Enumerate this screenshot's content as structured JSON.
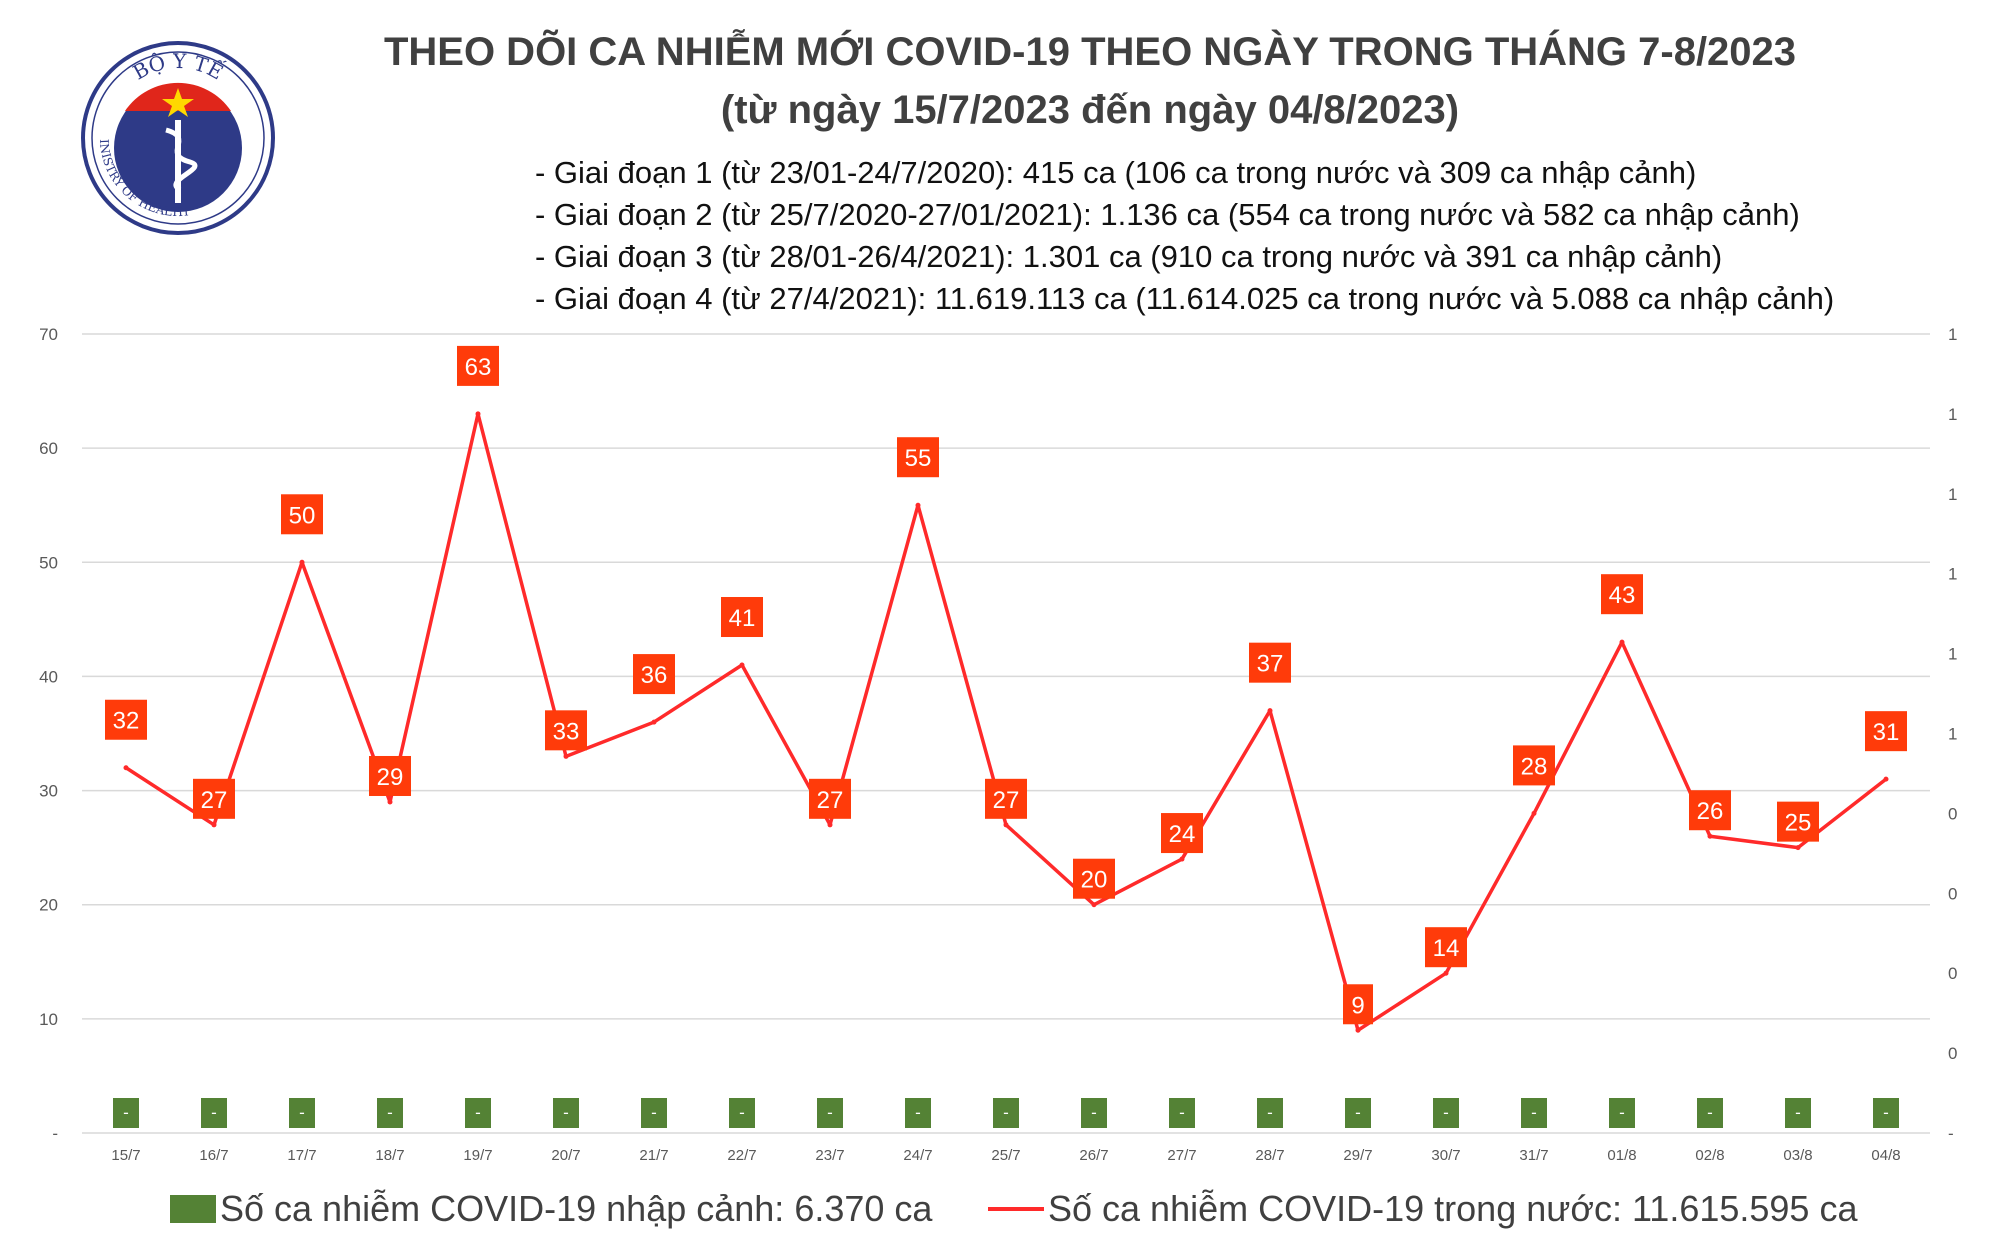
{
  "logo": {
    "top_text": "BỘ Y TẾ",
    "bottom_text": "MINISTRY OF HEALTH"
  },
  "title": {
    "line1": "THEO DÕI CA NHIỄM MỚI COVID-19 THEO NGÀY TRONG THÁNG 7-8/2023",
    "line2": "(từ ngày 15/7/2023 đến ngày 04/8/2023)"
  },
  "notes": [
    "- Giai đoạn 1 (từ 23/01-24/7/2020): 415 ca (106 ca trong nước và 309 ca nhập cảnh)",
    "- Giai đoạn 2 (từ 25/7/2020-27/01/2021): 1.136 ca (554 ca trong nước và 582 ca nhập cảnh)",
    "- Giai đoạn 3 (từ 28/01-26/4/2021): 1.301 ca (910 ca trong nước và 391 ca nhập cảnh)",
    "- Giai đoạn 4 (từ 27/4/2021): 11.619.113 ca (11.614.025 ca trong nước và 5.088 ca nhập cảnh)"
  ],
  "legend": {
    "import_label": "Số ca nhiễm COVID-19 nhập cảnh: 6.370 ca",
    "domestic_label": "Số ca nhiễm COVID-19 trong nước: 11.615.595 ca"
  },
  "colors": {
    "line": "#ff2a2a",
    "label_bg": "#ff3b0a",
    "bar": "#548235",
    "grid": "#d9d9d9",
    "axis_text": "#595959"
  },
  "chart_data": {
    "type": "line",
    "categories": [
      "15/7",
      "16/7",
      "17/7",
      "18/7",
      "19/7",
      "20/7",
      "21/7",
      "22/7",
      "23/7",
      "24/7",
      "25/7",
      "26/7",
      "27/7",
      "28/7",
      "29/7",
      "30/7",
      "31/7",
      "01/8",
      "02/8",
      "03/8",
      "04/8"
    ],
    "series": [
      {
        "name": "Số ca nhiễm COVID-19 trong nước: 11.615.595 ca",
        "type": "line",
        "values": [
          32,
          27,
          50,
          29,
          63,
          33,
          36,
          41,
          27,
          55,
          27,
          20,
          24,
          37,
          9,
          14,
          28,
          43,
          26,
          25,
          31
        ]
      },
      {
        "name": "Số ca nhiễm COVID-19 nhập cảnh: 6.370 ca",
        "type": "bar",
        "values": [
          0,
          0,
          0,
          0,
          0,
          0,
          0,
          0,
          0,
          0,
          0,
          0,
          0,
          0,
          0,
          0,
          0,
          0,
          0,
          0,
          0
        ],
        "labels": [
          "-",
          "-",
          "-",
          "-",
          "-",
          "-",
          "-",
          "-",
          "-",
          "-",
          "-",
          "-",
          "-",
          "-",
          "-",
          "-",
          "-",
          "-",
          "-",
          "-",
          "-"
        ]
      }
    ],
    "ylim": [
      0,
      70
    ],
    "y_ticks": [
      "-",
      "10",
      "20",
      "30",
      "40",
      "50",
      "60",
      "70"
    ],
    "y2_ticks": [
      "-",
      "0",
      "0",
      "0",
      "0",
      "1",
      "1",
      "1",
      "1",
      "1",
      "1"
    ],
    "grid": true,
    "legend_position": "bottom"
  }
}
